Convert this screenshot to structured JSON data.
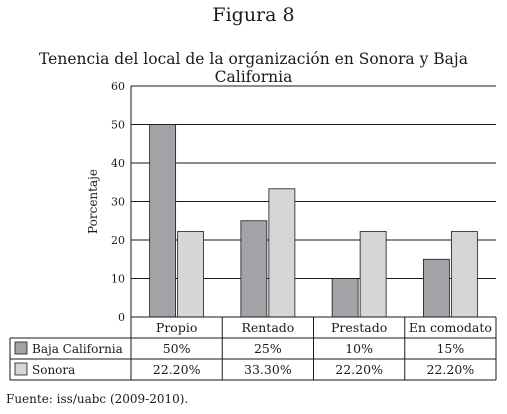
{
  "figure_label": "Figura 8",
  "source_note": "Fuente: iss/uabc (2009-2010).",
  "colors": {
    "baja_california": "#a3a3a7",
    "sonora": "#d6d6d8",
    "grid": "#1a1a1a"
  },
  "chart_data": {
    "type": "bar",
    "title": "Tenencia del local de la organización en Sonora y Baja California",
    "xlabel": "",
    "ylabel": "Porcentaje",
    "ylim": [
      0,
      60
    ],
    "yticks": [
      0,
      10,
      20,
      30,
      40,
      50,
      60
    ],
    "grid": true,
    "categories": [
      "Propio",
      "Rentado",
      "Prestado",
      "En comodato"
    ],
    "series": [
      {
        "name": "Baja California",
        "values": [
          50,
          25,
          10,
          15
        ],
        "labels": [
          "50%",
          "25%",
          "10%",
          "15%"
        ]
      },
      {
        "name": "Sonora",
        "values": [
          22.2,
          33.3,
          22.2,
          22.2
        ],
        "labels": [
          "22.20%",
          "33.30%",
          "22.20%",
          "22.20%"
        ]
      }
    ]
  }
}
